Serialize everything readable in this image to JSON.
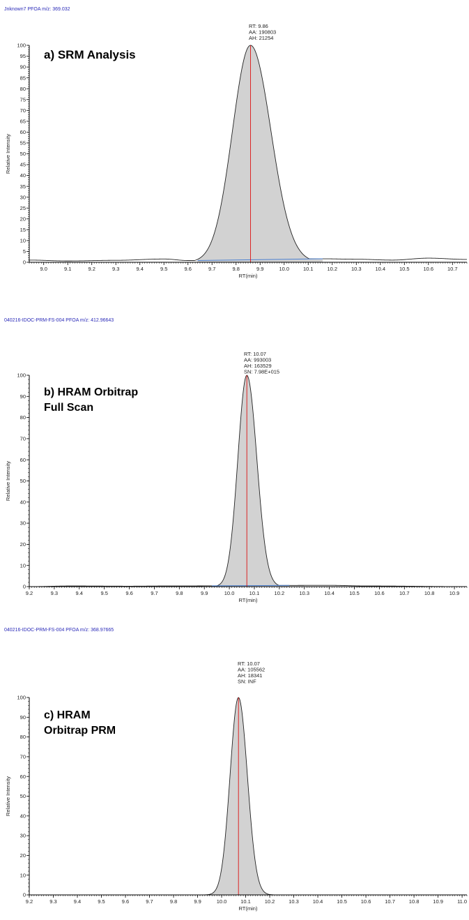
{
  "chart_data": [
    {
      "type": "area",
      "header": "Jnknown7  PFOA  m/z: 369.032",
      "panel_label": [
        "a) SRM Analysis"
      ],
      "xlabel": "RT(min)",
      "ylabel": "Relative Intensity",
      "xlim": [
        8.94,
        10.76
      ],
      "ylim": [
        0,
        100
      ],
      "x_ticks": [
        9.0,
        9.1,
        9.2,
        9.3,
        9.4,
        9.5,
        9.6,
        9.7,
        9.8,
        9.9,
        10.0,
        10.1,
        10.2,
        10.3,
        10.4,
        10.5,
        10.6,
        10.7
      ],
      "y_ticks": [
        0,
        5,
        10,
        15,
        20,
        25,
        30,
        35,
        40,
        45,
        50,
        55,
        60,
        65,
        70,
        75,
        80,
        85,
        90,
        95,
        100
      ],
      "peak": {
        "rt": 9.86,
        "height": 100,
        "sigma_left": 0.075,
        "sigma_right": 0.085,
        "fill_start": 9.64,
        "fill_end": 10.16
      },
      "baseline_noise": [
        [
          8.94,
          1.0
        ],
        [
          9.1,
          0.6
        ],
        [
          9.3,
          0.9
        ],
        [
          9.5,
          1.5
        ],
        [
          9.6,
          0.8
        ],
        [
          10.16,
          1.6
        ],
        [
          10.3,
          1.4
        ],
        [
          10.45,
          1.0
        ],
        [
          10.6,
          1.9
        ],
        [
          10.76,
          1.3
        ]
      ],
      "annotation": [
        "RT: 9.86",
        "AA: 190803",
        "AH: 21254"
      ]
    },
    {
      "type": "area",
      "header": "040216-IDOC-PRM-FS-004  PFOA  m/z: 412.96643",
      "panel_label": [
        "b) HRAM Orbitrap",
        "Full Scan"
      ],
      "xlabel": "RT(min)",
      "ylabel": "Relative Intensity",
      "xlim": [
        9.2,
        10.95
      ],
      "ylim": [
        0,
        100
      ],
      "x_ticks": [
        9.2,
        9.3,
        9.4,
        9.5,
        9.6,
        9.7,
        9.8,
        9.9,
        10.0,
        10.1,
        10.2,
        10.3,
        10.4,
        10.5,
        10.6,
        10.7,
        10.8,
        10.9
      ],
      "y_ticks": [
        0,
        10,
        20,
        30,
        40,
        50,
        60,
        70,
        80,
        90,
        100
      ],
      "peak": {
        "rt": 10.07,
        "height": 100,
        "sigma_left": 0.036,
        "sigma_right": 0.04,
        "fill_start": 9.93,
        "fill_end": 10.24
      },
      "baseline_noise": [
        [
          9.2,
          0
        ],
        [
          9.37,
          0.3
        ],
        [
          9.6,
          0.2
        ],
        [
          9.75,
          0.3
        ],
        [
          10.4,
          0.6
        ],
        [
          10.55,
          0.3
        ],
        [
          10.95,
          0
        ]
      ],
      "annotation": [
        "RT: 10.07",
        "AA: 993003",
        "AH: 163529",
        "SN: 7.98E+015"
      ]
    },
    {
      "type": "area",
      "header": "040216-IDOC-PRM-FS-004  PFOA  m/z: 368.97665",
      "panel_label": [
        "c) HRAM",
        "Orbitrap PRM"
      ],
      "xlabel": "RT(min)",
      "ylabel": "Relative Intensity",
      "xlim": [
        9.2,
        11.02
      ],
      "ylim": [
        0,
        100
      ],
      "x_ticks": [
        9.2,
        9.3,
        9.4,
        9.5,
        9.6,
        9.7,
        9.8,
        9.9,
        10.0,
        10.1,
        10.2,
        10.3,
        10.4,
        10.5,
        10.6,
        10.7,
        10.8,
        10.9,
        11.0
      ],
      "y_ticks": [
        0,
        10,
        20,
        30,
        40,
        50,
        60,
        70,
        80,
        90,
        100
      ],
      "peak": {
        "rt": 10.07,
        "height": 100,
        "sigma_left": 0.035,
        "sigma_right": 0.037,
        "fill_start": 9.94,
        "fill_end": 10.21
      },
      "baseline_noise": [
        [
          9.2,
          0
        ],
        [
          11.02,
          0
        ]
      ],
      "annotation": [
        "RT: 10.07",
        "AA: 105562",
        "AH: 18341",
        "SN: INF"
      ]
    }
  ]
}
